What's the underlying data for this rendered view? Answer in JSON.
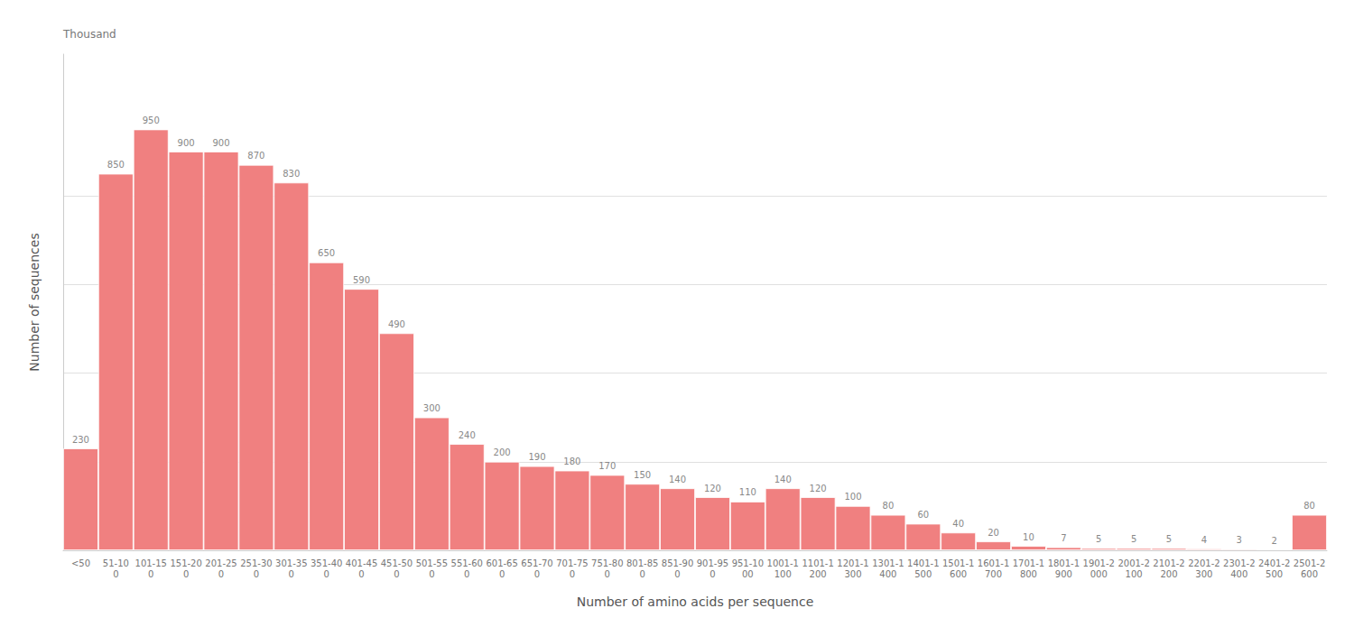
{
  "chart_data": {
    "type": "bar",
    "categories": [
      "<50",
      "51-10\n0",
      "101-15\n0",
      "151-20\n0",
      "201-25\n0",
      "251-30\n0",
      "301-35\n0",
      "351-40\n0",
      "401-45\n0",
      "451-50\n0",
      "501-55\n0",
      "551-60\n0",
      "601-65\n0",
      "651-70\n0",
      "701-75\n0",
      "751-80\n0",
      "801-85\n0",
      "851-90\n0",
      "901-95\n0",
      "951-10\n00",
      "1001-1\n100",
      "1101-1\n200",
      "1201-1\n300",
      "1301-1\n400",
      "1401-1\n500",
      "1501-1\n600",
      "1601-1\n700",
      "1701-1\n800",
      "1801-1\n900",
      "1901-2\n000",
      "2001-2\n100",
      "2101-2\n200",
      "2201-2\n300",
      "2301-2\n400",
      "2401-2\n500",
      "2501-2\n600"
    ],
    "values": [
      230,
      850,
      950,
      900,
      900,
      870,
      830,
      650,
      590,
      490,
      300,
      240,
      200,
      190,
      180,
      170,
      150,
      140,
      120,
      110,
      140,
      120,
      100,
      80,
      60,
      40,
      20,
      10,
      7,
      5,
      5,
      5,
      4,
      3,
      2,
      80
    ],
    "color": "#f08080",
    "xlabel": "Number of amino acids per sequence",
    "ylabel": "Number of sequences",
    "annotations": [
      "Thousand"
    ],
    "ylim": [
      0,
      1120
    ],
    "yticks": [
      0,
      200,
      400,
      600,
      800,
      1000
    ],
    "grid": true,
    "data_labels": true,
    "tick_labels": "x"
  }
}
